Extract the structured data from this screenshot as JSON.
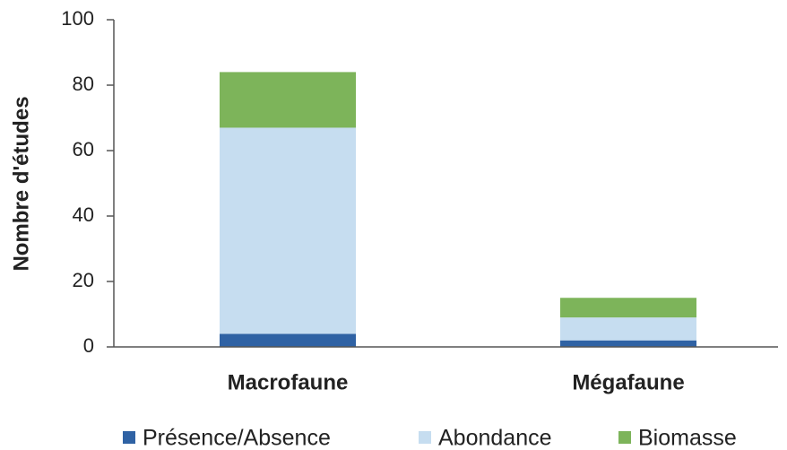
{
  "chart_data": {
    "type": "stacked_bar",
    "ylabel": "Nombre d'études",
    "categories": [
      "Macrofaune",
      "Mégafaune"
    ],
    "series": [
      {
        "name": "Présence/Absence",
        "color": "#2f62a4",
        "values": [
          4,
          2
        ]
      },
      {
        "name": "Abondance",
        "color": "#c6ddf0",
        "values": [
          63,
          7
        ]
      },
      {
        "name": "Biomasse",
        "color": "#7db45a",
        "values": [
          17,
          6
        ]
      }
    ],
    "ylim": [
      0,
      100
    ],
    "yticks": [
      0,
      20,
      40,
      60,
      80,
      100
    ],
    "legend": "bottom"
  }
}
